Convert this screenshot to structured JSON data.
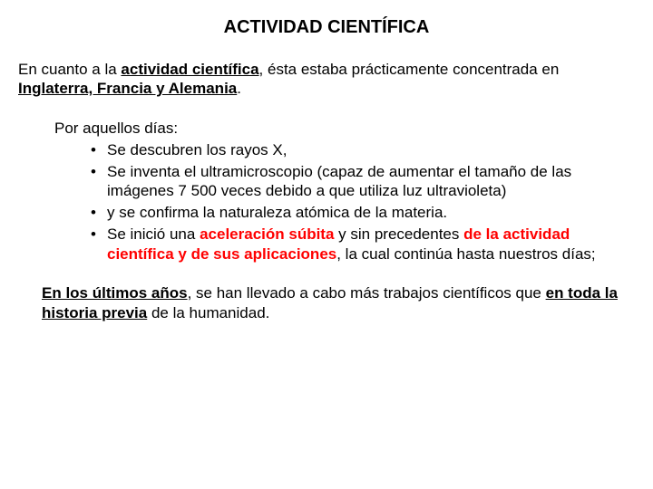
{
  "colors": {
    "text": "#000000",
    "accent_red": "#ff0000",
    "background": "#ffffff"
  },
  "typography": {
    "title_fontsize_pt": 15,
    "body_fontsize_pt": 13,
    "font_family": "Arial"
  },
  "title": "ACTIVIDAD CIENTÍFICA",
  "p1": {
    "t1": "En cuanto a la ",
    "t2": "actividad científica",
    "t3": ", ésta estaba prácticamente concentrada en ",
    "t4": "Inglaterra, Francia y Alemania",
    "t5": "."
  },
  "mid": {
    "intro": "Por aquellos días:",
    "b1": "Se descubren los rayos X,",
    "b2": "Se inventa el ultramicroscopio (capaz de aumentar el tamaño de las imágenes 7 500 veces debido a que utiliza luz ultravioleta)",
    "b3": "y se confirma la naturaleza atómica de la materia.",
    "b4_a": "Se inició una ",
    "b4_b": "aceleración súbita",
    "b4_c": " y sin precedentes ",
    "b4_d": "de la actividad científica y de sus aplicaciones",
    "b4_e": ", la cual continúa hasta nuestros días;"
  },
  "p3": {
    "t1": "En los últimos años",
    "t2": ", se han llevado a cabo más trabajos científicos que ",
    "t3": "en toda la historia previa",
    "t4": " de la humanidad."
  }
}
